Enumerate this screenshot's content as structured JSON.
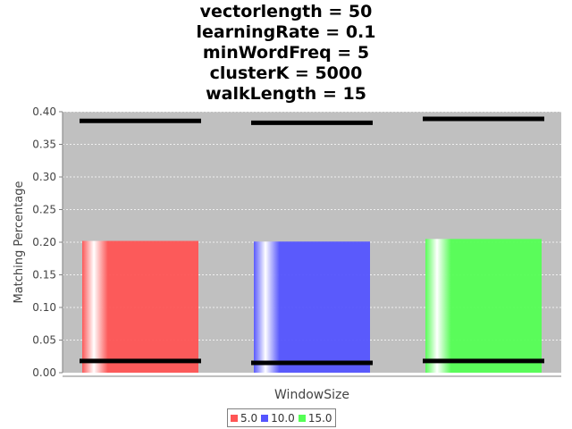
{
  "chart_data": {
    "type": "bar",
    "title_lines": [
      "vectorlength = 50",
      "learningRate = 0.1",
      "minWordFreq = 5",
      "clusterK = 5000",
      "walkLength = 15"
    ],
    "xlabel": "WindowSize",
    "ylabel": "Matching Percentage",
    "ylim": [
      0,
      0.4
    ],
    "y_ticks": [
      "0.00",
      "0.05",
      "0.10",
      "0.15",
      "0.20",
      "0.25",
      "0.30",
      "0.35",
      "0.40"
    ],
    "grid": true,
    "legend_position": "bottom",
    "series": [
      {
        "name": "5.0",
        "value": 0.202,
        "lower": 0.018,
        "upper": 0.386,
        "color": "#ff5555"
      },
      {
        "name": "10.0",
        "value": 0.201,
        "lower": 0.015,
        "upper": 0.383,
        "color": "#5555ff"
      },
      {
        "name": "15.0",
        "value": 0.205,
        "lower": 0.018,
        "upper": 0.389,
        "color": "#55ff55"
      }
    ]
  }
}
